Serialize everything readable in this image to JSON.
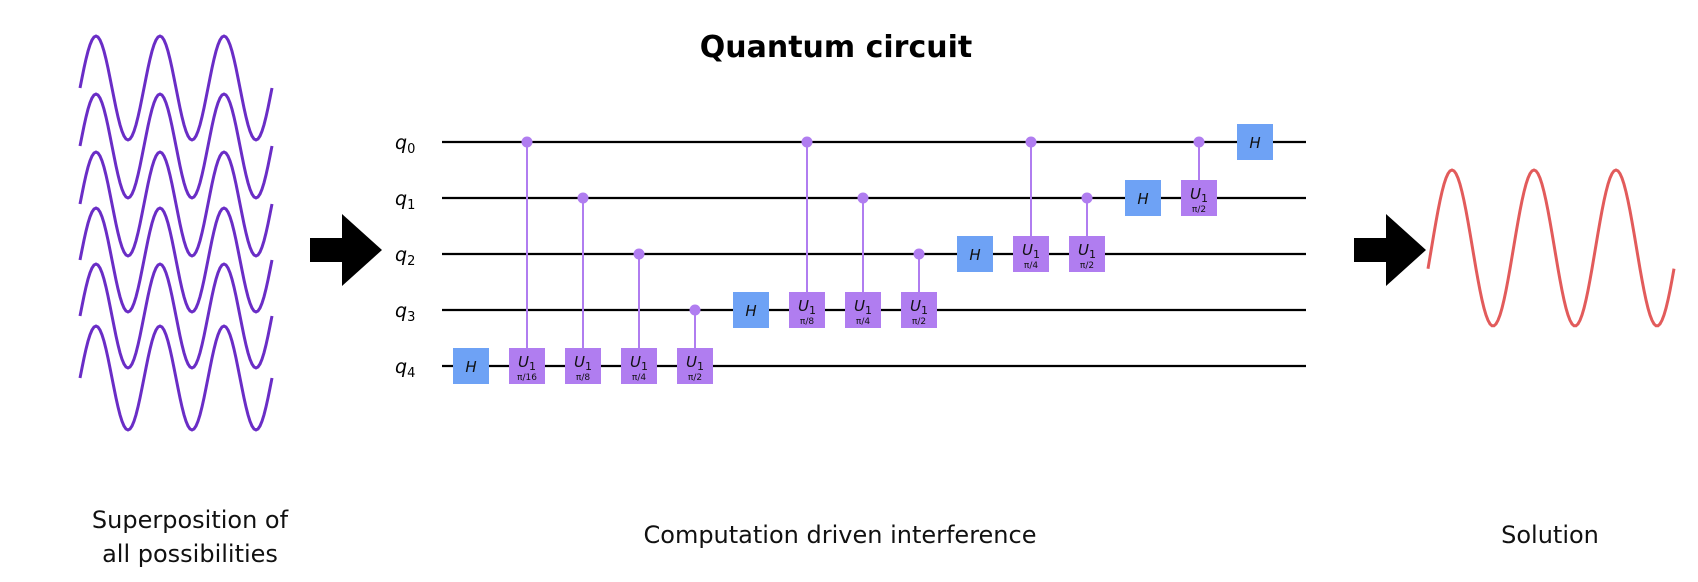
{
  "title": "Quantum circuit",
  "captions": {
    "left_line1": "Superposition of",
    "left_line2": "all possibilities",
    "center": "Computation driven interference",
    "right": "Solution"
  },
  "colors": {
    "wave_left": "#6a2dc6",
    "wave_right": "#e25b5b",
    "h_gate": "#6ea2f5",
    "u_gate": "#b07df0",
    "control": "#b07df0",
    "wire": "#000000",
    "arrow": "#000000"
  },
  "circuit": {
    "qubits": [
      {
        "base": "q",
        "sub": "0"
      },
      {
        "base": "q",
        "sub": "1"
      },
      {
        "base": "q",
        "sub": "2"
      },
      {
        "base": "q",
        "sub": "3"
      },
      {
        "base": "q",
        "sub": "4"
      }
    ],
    "gate_h_label": "H",
    "gate_u_label": {
      "base": "U",
      "sub": "1"
    },
    "gates": [
      {
        "type": "H",
        "target": 4
      },
      {
        "type": "CU",
        "control": 0,
        "target": 4,
        "param": "π/16"
      },
      {
        "type": "CU",
        "control": 1,
        "target": 4,
        "param": "π/8"
      },
      {
        "type": "CU",
        "control": 2,
        "target": 4,
        "param": "π/4"
      },
      {
        "type": "CU",
        "control": 3,
        "target": 4,
        "param": "π/2"
      },
      {
        "type": "H",
        "target": 3
      },
      {
        "type": "CU",
        "control": 0,
        "target": 3,
        "param": "π/8"
      },
      {
        "type": "CU",
        "control": 1,
        "target": 3,
        "param": "π/4"
      },
      {
        "type": "CU",
        "control": 2,
        "target": 3,
        "param": "π/2"
      },
      {
        "type": "H",
        "target": 2
      },
      {
        "type": "CU",
        "control": 0,
        "target": 2,
        "param": "π/4"
      },
      {
        "type": "CU",
        "control": 1,
        "target": 2,
        "param": "π/2"
      },
      {
        "type": "H",
        "target": 1
      },
      {
        "type": "CU",
        "control": 0,
        "target": 1,
        "param": "π/2"
      },
      {
        "type": "H",
        "target": 0
      }
    ]
  }
}
